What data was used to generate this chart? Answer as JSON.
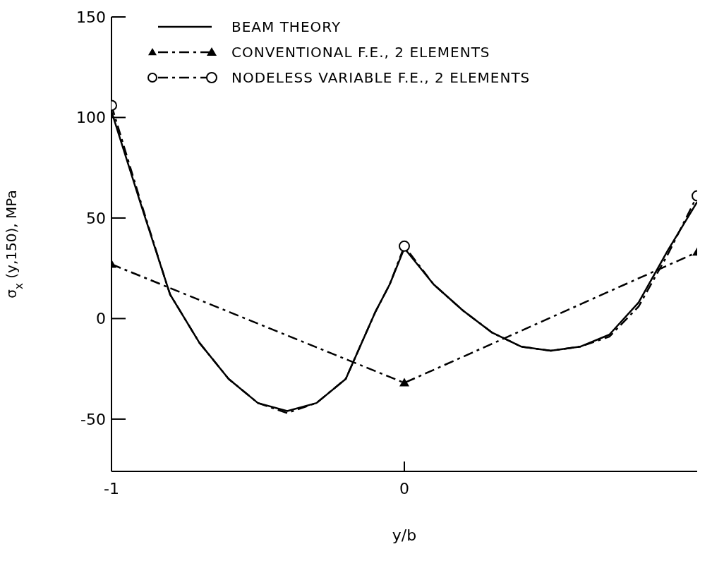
{
  "chart_data": {
    "type": "line",
    "xlabel": "y/b",
    "ylabel": "σ$_{x}$ (y,150), MPa",
    "xlim": [
      -1,
      1
    ],
    "xticks": [
      -1,
      0
    ],
    "ylim": [
      -76,
      150
    ],
    "yticks": [
      150,
      100,
      50,
      0,
      -50
    ],
    "grid": false,
    "legend": "top left",
    "series": [
      {
        "name": "BEAM THEORY",
        "color": "#000000",
        "line_style": "solid",
        "marker": "none",
        "x": [
          -1,
          -0.9,
          -0.82,
          -0.8,
          -0.7,
          -0.6,
          -0.5,
          -0.4,
          -0.3,
          -0.2,
          -0.1,
          -0.05,
          0,
          0.1,
          0.2,
          0.3,
          0.4,
          0.5,
          0.6,
          0.7,
          0.8,
          0.9,
          1
        ],
        "values": [
          103,
          57,
          21,
          12,
          -12,
          -30,
          -42,
          -46,
          -42,
          -30,
          3,
          17,
          35,
          17,
          4,
          -7,
          -14,
          -16,
          -14,
          -8,
          8,
          34,
          58
        ]
      },
      {
        "name": "CONVENTIONAL F.E., 2 ELEMENTS",
        "color": "#000000",
        "line_style": "dashed",
        "marker": "triangle",
        "x": [
          -1,
          0,
          1
        ],
        "values": [
          27,
          -32,
          33
        ]
      },
      {
        "name": "NODELESS VARIABLE F.E., 2 ELEMENTS",
        "color": "#000000",
        "line_style": "dashed",
        "marker": "none",
        "x": [
          -1,
          -0.9,
          -0.82,
          -0.8,
          -0.7,
          -0.6,
          -0.5,
          -0.4,
          -0.3,
          -0.2,
          -0.1,
          -0.05,
          0,
          0.1,
          0.2,
          0.3,
          0.4,
          0.5,
          0.6,
          0.7,
          0.8,
          0.9,
          1
        ],
        "values": [
          106,
          58,
          21,
          12,
          -12,
          -30,
          -42,
          -47,
          -42,
          -30,
          3,
          17,
          36,
          17,
          4,
          -7,
          -14,
          -16,
          -14,
          -9,
          6,
          32,
          61
        ]
      },
      {
        "type": "scatter",
        "color": "#000000",
        "marker": "circle",
        "x": [
          -1,
          0,
          1
        ],
        "values": [
          106,
          36,
          61
        ]
      }
    ]
  }
}
